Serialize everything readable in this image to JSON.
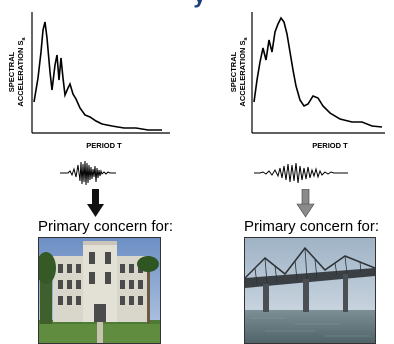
{
  "title_fragment": "y",
  "left_panel": {
    "y_label_line1": "SPECTRAL",
    "y_label_line2": "ACCELERATION S",
    "y_label_sub": "a",
    "x_label": "PERIOD T",
    "concern_label": "Primary concern for:",
    "photo_subject": "building-photo",
    "arrow_color": "#111111"
  },
  "right_panel": {
    "y_label_line1": "SPECTRAL",
    "y_label_line2": "ACCELERATION S",
    "y_label_sub": "a",
    "x_label": "PERIOD T",
    "concern_label": "Primary concern for:",
    "photo_subject": "bridge-photo",
    "arrow_color": "#8a8a8a"
  }
}
